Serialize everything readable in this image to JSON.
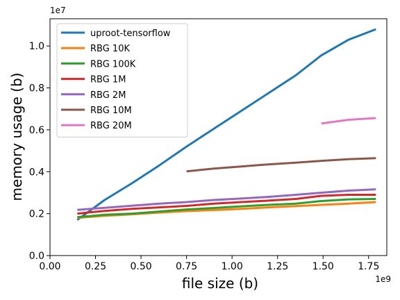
{
  "chart_data": {
    "type": "line",
    "title": "",
    "xlabel": "file size (b)",
    "ylabel": "memory usage (b)",
    "x_offset_label": "1e9",
    "y_offset_label": "1e7",
    "x_scale": 1000000000,
    "y_scale": 10000000,
    "xlim": [
      0,
      1850000000
    ],
    "ylim": [
      0,
      11300000
    ],
    "x_ticks": [
      0,
      250000000,
      500000000,
      750000000,
      1000000000,
      1250000000,
      1500000000,
      1750000000
    ],
    "x_tick_labels": [
      "0.00",
      "0.25",
      "0.50",
      "0.75",
      "1.00",
      "1.25",
      "1.50",
      "1.75"
    ],
    "y_ticks": [
      0,
      2000000,
      4000000,
      6000000,
      8000000,
      10000000
    ],
    "y_tick_labels": [
      "0.0",
      "0.2",
      "0.4",
      "0.6",
      "0.8",
      "1.0"
    ],
    "grid": false,
    "legend_position": "top-left",
    "series": [
      {
        "name": "uproot-tensorflow",
        "color": "#1f77b4",
        "points": [
          [
            150000000,
            1700000
          ],
          [
            300000000,
            2650000
          ],
          [
            450000000,
            3450000
          ],
          [
            600000000,
            4300000
          ],
          [
            750000000,
            5200000
          ],
          [
            900000000,
            6050000
          ],
          [
            1050000000,
            6900000
          ],
          [
            1200000000,
            7750000
          ],
          [
            1350000000,
            8600000
          ],
          [
            1490000000,
            9550000
          ],
          [
            1640000000,
            10300000
          ],
          [
            1790000000,
            10800000
          ]
        ]
      },
      {
        "name": "RBG 10K",
        "color": "#ff7f0e",
        "points": [
          [
            150000000,
            1800000
          ],
          [
            300000000,
            1900000
          ],
          [
            450000000,
            1970000
          ],
          [
            600000000,
            2050000
          ],
          [
            750000000,
            2120000
          ],
          [
            900000000,
            2170000
          ],
          [
            1050000000,
            2230000
          ],
          [
            1200000000,
            2300000
          ],
          [
            1350000000,
            2360000
          ],
          [
            1490000000,
            2420000
          ],
          [
            1640000000,
            2480000
          ],
          [
            1790000000,
            2550000
          ]
        ]
      },
      {
        "name": "RBG 100K",
        "color": "#2ca02c",
        "points": [
          [
            150000000,
            1830000
          ],
          [
            300000000,
            1950000
          ],
          [
            450000000,
            2000000
          ],
          [
            600000000,
            2100000
          ],
          [
            750000000,
            2200000
          ],
          [
            900000000,
            2270000
          ],
          [
            1050000000,
            2350000
          ],
          [
            1200000000,
            2420000
          ],
          [
            1350000000,
            2480000
          ],
          [
            1490000000,
            2600000
          ],
          [
            1640000000,
            2680000
          ],
          [
            1790000000,
            2700000
          ]
        ]
      },
      {
        "name": "RBG 1M",
        "color": "#d62728",
        "points": [
          [
            150000000,
            2000000
          ],
          [
            300000000,
            2130000
          ],
          [
            450000000,
            2230000
          ],
          [
            600000000,
            2300000
          ],
          [
            750000000,
            2370000
          ],
          [
            900000000,
            2480000
          ],
          [
            1050000000,
            2550000
          ],
          [
            1200000000,
            2620000
          ],
          [
            1350000000,
            2700000
          ],
          [
            1490000000,
            2850000
          ],
          [
            1640000000,
            2900000
          ],
          [
            1790000000,
            2900000
          ]
        ]
      },
      {
        "name": "RBG 2M",
        "color": "#9467bd",
        "points": [
          [
            150000000,
            2180000
          ],
          [
            300000000,
            2280000
          ],
          [
            450000000,
            2380000
          ],
          [
            600000000,
            2480000
          ],
          [
            750000000,
            2550000
          ],
          [
            900000000,
            2650000
          ],
          [
            1050000000,
            2720000
          ],
          [
            1200000000,
            2800000
          ],
          [
            1350000000,
            2900000
          ],
          [
            1490000000,
            3000000
          ],
          [
            1640000000,
            3100000
          ],
          [
            1790000000,
            3160000
          ]
        ]
      },
      {
        "name": "RBG 10M",
        "color": "#8c564b",
        "points": [
          [
            750000000,
            4020000
          ],
          [
            900000000,
            4150000
          ],
          [
            1050000000,
            4250000
          ],
          [
            1200000000,
            4350000
          ],
          [
            1350000000,
            4430000
          ],
          [
            1490000000,
            4520000
          ],
          [
            1640000000,
            4600000
          ],
          [
            1790000000,
            4650000
          ]
        ]
      },
      {
        "name": "RBG 20M",
        "color": "#e377c2",
        "points": [
          [
            1490000000,
            6300000
          ],
          [
            1640000000,
            6480000
          ],
          [
            1790000000,
            6560000
          ]
        ]
      }
    ]
  }
}
